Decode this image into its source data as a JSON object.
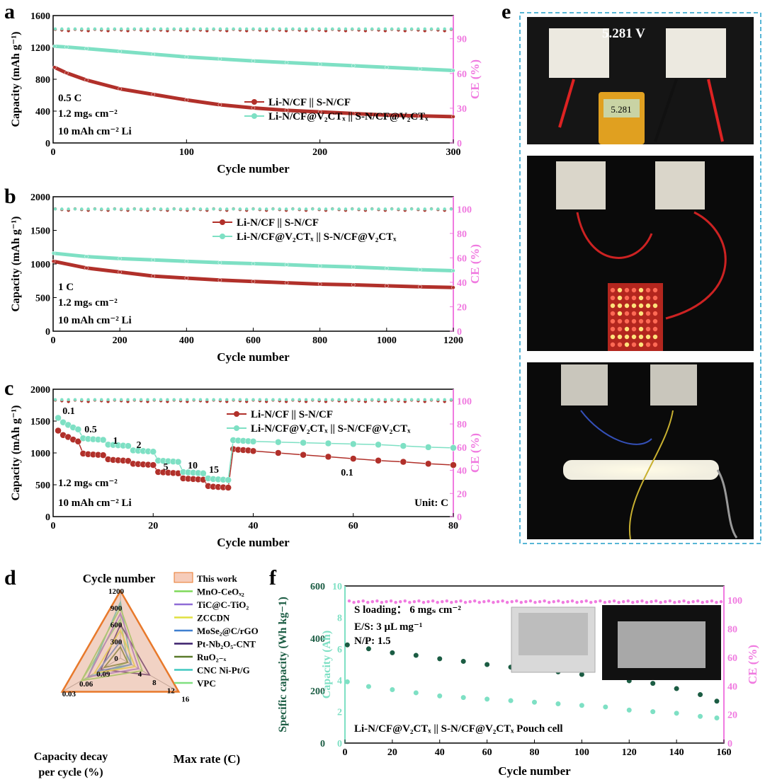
{
  "panels": {
    "a": "a",
    "b": "b",
    "c": "c",
    "d": "d",
    "e": "e",
    "f": "f"
  },
  "colors": {
    "red": "#b1302a",
    "cyan": "#7ee0c4",
    "pink": "#f07ae0",
    "darkgreen": "#1b5c43",
    "orange": "#e8792b",
    "dashed_border": "#57b6d6"
  },
  "chart_data": [
    {
      "id": "a",
      "type": "line",
      "xlabel": "Cycle number",
      "ylabel": "Capacity (mAh g⁻¹)",
      "y2label": "CE (%)",
      "xlim": [
        0,
        300
      ],
      "ylim": [
        0,
        1600
      ],
      "y2lim": [
        0,
        110
      ],
      "xticks": [
        "0",
        "100",
        "200",
        "300"
      ],
      "yticks": [
        "0",
        "400",
        "800",
        "1200",
        "1600"
      ],
      "y2ticks": [
        "0",
        "30",
        "60",
        "90"
      ],
      "annotations": [
        "0.5 C",
        "1.2 mgₛ cm⁻²",
        "10 mAh cm⁻² Li"
      ],
      "legend": [
        "Li-N/CF || S-N/CF",
        "Li-N/CF@V₂CTₓ || S-N/CF@V₂CTₓ"
      ],
      "series": [
        {
          "name": "Li-N/CF || S-N/CF",
          "x": [
            1,
            10,
            25,
            50,
            75,
            100,
            125,
            150,
            175,
            200,
            225,
            250,
            275,
            300
          ],
          "values": [
            950,
            880,
            790,
            680,
            610,
            540,
            480,
            440,
            410,
            390,
            370,
            350,
            340,
            330
          ]
        },
        {
          "name": "Li-N/CF@V₂CTₓ || S-N/CF@V₂CTₓ",
          "x": [
            1,
            10,
            25,
            50,
            75,
            100,
            125,
            150,
            175,
            200,
            225,
            250,
            275,
            300
          ],
          "values": [
            1215,
            1205,
            1185,
            1150,
            1115,
            1080,
            1055,
            1030,
            1010,
            990,
            970,
            950,
            930,
            910
          ]
        }
      ],
      "ce": [
        {
          "name": "Li-N/CF || S-N/CF",
          "value": 97.5
        },
        {
          "name": "Li-N/CF@V₂CTₓ || S-N/CF@V₂CTₓ",
          "value": 98.5
        }
      ]
    },
    {
      "id": "b",
      "type": "line",
      "xlabel": "Cycle number",
      "ylabel": "Capacity (mAh g⁻¹)",
      "y2label": "CE (%)",
      "xlim": [
        0,
        1200
      ],
      "ylim": [
        0,
        2000
      ],
      "y2lim": [
        0,
        110
      ],
      "xticks": [
        "0",
        "200",
        "400",
        "600",
        "800",
        "1000",
        "1200"
      ],
      "yticks": [
        "0",
        "500",
        "1000",
        "1500",
        "2000"
      ],
      "y2ticks": [
        "0",
        "20",
        "40",
        "60",
        "80",
        "100"
      ],
      "annotations": [
        "1 C",
        "1.2 mgₛ cm⁻²",
        "10 mAh cm⁻² Li"
      ],
      "legend": [
        "Li-N/CF || S-N/CF",
        "Li-N/CF@V₂CTₓ || S-N/CF@V₂CTₓ"
      ],
      "series": [
        {
          "name": "Li-N/CF || S-N/CF",
          "x": [
            1,
            100,
            200,
            300,
            400,
            500,
            600,
            700,
            800,
            900,
            1000,
            1100,
            1200
          ],
          "values": [
            1040,
            940,
            880,
            820,
            790,
            760,
            740,
            720,
            700,
            690,
            675,
            660,
            650
          ]
        },
        {
          "name": "Li-N/CF@V₂CTₓ || S-N/CF@V₂CTₓ",
          "x": [
            1,
            100,
            200,
            300,
            400,
            500,
            600,
            700,
            800,
            900,
            1000,
            1100,
            1200
          ],
          "values": [
            1160,
            1110,
            1080,
            1060,
            1040,
            1020,
            1005,
            990,
            970,
            955,
            935,
            915,
            900
          ]
        }
      ],
      "ce": [
        {
          "name": "Li-N/CF || S-N/CF",
          "value": 99.5
        },
        {
          "name": "Li-N/CF@V₂CTₓ || S-N/CF@V₂CTₓ",
          "value": 100
        }
      ]
    },
    {
      "id": "c",
      "type": "line",
      "xlabel": "Cycle number",
      "ylabel": "Capacity (mAh g⁻¹)",
      "y2label": "CE (%)",
      "xlim": [
        0,
        80
      ],
      "ylim": [
        0,
        2000
      ],
      "y2lim": [
        0,
        110
      ],
      "xticks": [
        "0",
        "20",
        "40",
        "60",
        "80"
      ],
      "yticks": [
        "0",
        "500",
        "1000",
        "1500",
        "2000"
      ],
      "y2ticks": [
        "0",
        "20",
        "40",
        "60",
        "80",
        "100"
      ],
      "annotations": [
        "1.2 mgₛ cm⁻²",
        "10 mAh cm⁻² Li",
        "Unit: C"
      ],
      "rate_labels": [
        "0.1",
        "0.5",
        "1",
        "2",
        "5",
        "10",
        "15",
        "0.1"
      ],
      "legend": [
        "Li-N/CF || S-N/CF",
        "Li-N/CF@V₂CTₓ || S-N/CF@V₂CTₓ"
      ],
      "series": [
        {
          "name": "Li-N/CF || S-N/CF",
          "x": [
            1,
            2,
            3,
            4,
            5,
            6,
            7,
            8,
            9,
            10,
            11,
            12,
            13,
            14,
            15,
            16,
            17,
            18,
            19,
            20,
            21,
            22,
            23,
            24,
            25,
            26,
            27,
            28,
            29,
            30,
            31,
            32,
            33,
            34,
            35,
            36,
            37,
            38,
            39,
            40,
            45,
            50,
            55,
            60,
            65,
            70,
            75,
            80
          ],
          "values": [
            1350,
            1280,
            1250,
            1210,
            1180,
            990,
            980,
            975,
            970,
            965,
            900,
            890,
            885,
            880,
            875,
            830,
            825,
            820,
            815,
            810,
            700,
            695,
            690,
            685,
            680,
            600,
            595,
            590,
            585,
            580,
            480,
            470,
            465,
            460,
            455,
            1060,
            1050,
            1045,
            1040,
            1030,
            1000,
            970,
            940,
            910,
            880,
            860,
            830,
            810
          ]
        },
        {
          "name": "Li-N/CF@V₂CTₓ || S-N/CF@V₂CTₓ",
          "x": [
            1,
            2,
            3,
            4,
            5,
            6,
            7,
            8,
            9,
            10,
            11,
            12,
            13,
            14,
            15,
            16,
            17,
            18,
            19,
            20,
            21,
            22,
            23,
            24,
            25,
            26,
            27,
            28,
            29,
            30,
            31,
            32,
            33,
            34,
            35,
            36,
            37,
            38,
            39,
            40,
            45,
            50,
            55,
            60,
            65,
            70,
            75,
            80
          ],
          "values": [
            1550,
            1480,
            1440,
            1400,
            1370,
            1230,
            1220,
            1215,
            1210,
            1205,
            1130,
            1125,
            1120,
            1115,
            1110,
            1040,
            1035,
            1030,
            1025,
            1020,
            880,
            875,
            870,
            865,
            860,
            700,
            695,
            690,
            685,
            680,
            600,
            590,
            585,
            580,
            575,
            1200,
            1195,
            1190,
            1185,
            1180,
            1170,
            1160,
            1150,
            1140,
            1130,
            1110,
            1090,
            1080
          ]
        }
      ],
      "ce": [
        {
          "name": "Li-N/CF || S-N/CF",
          "value": 100
        },
        {
          "name": "Li-N/CF@V₂CTₓ || S-N/CF@V₂CTₓ",
          "value": 101
        }
      ]
    },
    {
      "id": "d",
      "type": "radar",
      "axes": [
        "Cycle number",
        "Max rate (C)",
        "Capacity decay per cycle (%)"
      ],
      "axis_labels": {
        "top": "Cycle number",
        "right": "Max rate (C)",
        "left_line1": "Capacity decay",
        "left_line2": "per cycle (%)"
      },
      "cycle_ticks": [
        "0",
        "300",
        "600",
        "900",
        "1200"
      ],
      "rate_ticks": [
        "4",
        "8",
        "12",
        "16"
      ],
      "decay_ticks": [
        "0.09",
        "0.06",
        "0.03"
      ],
      "legend": [
        "This work",
        "MnO-CeOₓ₂",
        "TiC@C-TiO₂",
        "ZCCDN",
        "MoSe₂@C/rGO",
        "Pt-Nb₂O₅-CNT",
        "RuO₂₋ₓ",
        "CNC Ni-Pt/G",
        "VPC"
      ],
      "series": [
        {
          "name": "This work",
          "cycle": 1200,
          "rate": 16,
          "decay": 0.03,
          "color": "#e8792b"
        },
        {
          "name": "MnO-CeOₓ₂",
          "cycle": 900,
          "rate": 6,
          "decay": 0.06,
          "color": "#7fd95a"
        },
        {
          "name": "TiC@C-TiO₂",
          "cycle": 800,
          "rate": 5,
          "decay": 0.07,
          "color": "#8f6bd6"
        },
        {
          "name": "ZCCDN",
          "cycle": 500,
          "rate": 4,
          "decay": 0.08,
          "color": "#e0e040"
        },
        {
          "name": "MoSe₂@C/rGO",
          "cycle": 300,
          "rate": 3,
          "decay": 0.085,
          "color": "#3f7fd0"
        },
        {
          "name": "Pt-Nb₂O₅-CNT",
          "cycle": 600,
          "rate": 8,
          "decay": 0.09,
          "color": "#3a1f6b"
        },
        {
          "name": "RuO₂₋ₓ",
          "cycle": 200,
          "rate": 2,
          "decay": 0.095,
          "color": "#5a7a2a"
        },
        {
          "name": "CNC Ni-Pt/G",
          "cycle": 1000,
          "rate": 3,
          "decay": 0.07,
          "color": "#40c8c0"
        },
        {
          "name": "VPC",
          "cycle": 700,
          "rate": 2,
          "decay": 0.06,
          "color": "#80e080"
        }
      ]
    },
    {
      "id": "f",
      "type": "scatter",
      "xlabel": "Cycle number",
      "ylabel": "Specific capacity (Wh kg−1)",
      "y_mid_label": "Capacity (Ah)",
      "y2label": "CE (%)",
      "xlim": [
        0,
        160
      ],
      "ylim": [
        0,
        600
      ],
      "ymidlim": [
        0,
        10
      ],
      "y2lim": [
        0,
        110
      ],
      "xticks": [
        "0",
        "20",
        "40",
        "60",
        "80",
        "100",
        "120",
        "140",
        "160"
      ],
      "yticks": [
        "0",
        "200",
        "400",
        "600"
      ],
      "ymidticks": [
        "0",
        "2",
        "4",
        "6",
        "8",
        "10"
      ],
      "y2ticks": [
        "0",
        "20",
        "40",
        "60",
        "80",
        "100"
      ],
      "annotations": [
        "S loading： 6 mgₛ cm⁻²",
        "E/S: 3 μL mg⁻¹",
        "N/P: 1.5",
        "Li-N/CF@V₂CTₓ || S-N/CF@V₂CTₓ  Pouch cell"
      ],
      "series": [
        {
          "name": "specific",
          "x": [
            1,
            10,
            20,
            30,
            40,
            50,
            60,
            70,
            80,
            90,
            100,
            110,
            120,
            130,
            140,
            150,
            157
          ],
          "values": [
            375,
            360,
            345,
            335,
            322,
            312,
            300,
            290,
            285,
            272,
            262,
            250,
            238,
            228,
            208,
            185,
            160
          ]
        },
        {
          "name": "capacity",
          "x": [
            1,
            10,
            20,
            30,
            40,
            50,
            60,
            70,
            80,
            90,
            100,
            110,
            120,
            130,
            140,
            150,
            157
          ],
          "values": [
            3.9,
            3.6,
            3.4,
            3.2,
            3.0,
            2.9,
            2.8,
            2.7,
            2.6,
            2.5,
            2.4,
            2.3,
            2.1,
            2.0,
            1.9,
            1.7,
            1.6
          ]
        }
      ],
      "ce": 99
    }
  ],
  "panel_e": {
    "voltage": "5.281 V",
    "meter_reading": "5.281"
  }
}
